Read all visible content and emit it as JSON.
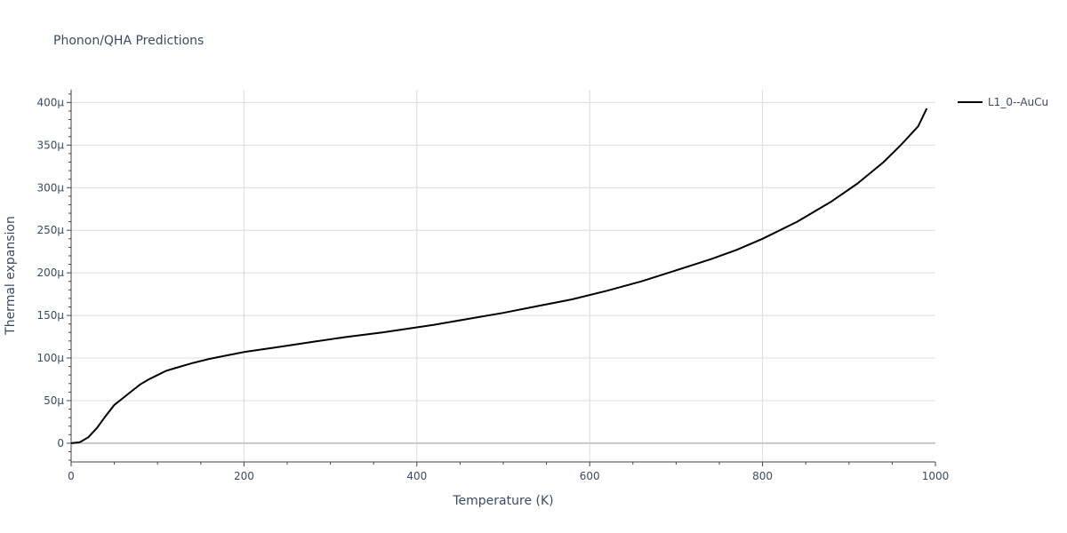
{
  "chart_data": {
    "type": "line",
    "title": "Phonon/QHA Predictions",
    "xlabel": "Temperature (K)",
    "ylabel": "Thermal expansion",
    "xlim": [
      0,
      1000
    ],
    "ylim": [
      -22,
      415
    ],
    "x_ticks": [
      0,
      200,
      400,
      600,
      800,
      1000
    ],
    "y_ticks": [
      0,
      50,
      100,
      150,
      200,
      250,
      300,
      350,
      400
    ],
    "y_tick_labels": [
      "0",
      "50µ",
      "100µ",
      "150µ",
      "200µ",
      "250µ",
      "300µ",
      "350µ",
      "400µ"
    ],
    "grid": true,
    "legend_position": "top-right",
    "series": [
      {
        "name": "L1_0--AuCu",
        "color": "#000000",
        "x": [
          0,
          10,
          20,
          30,
          40,
          50,
          60,
          70,
          80,
          90,
          100,
          110,
          120,
          140,
          160,
          180,
          200,
          240,
          280,
          320,
          360,
          400,
          420,
          460,
          500,
          540,
          580,
          620,
          660,
          700,
          740,
          770,
          800,
          840,
          880,
          910,
          940,
          960,
          980,
          990
        ],
        "y": [
          0,
          1,
          7,
          18,
          32,
          45,
          53,
          61,
          69,
          75,
          80,
          85,
          88,
          94,
          99,
          103,
          107,
          113,
          119,
          125,
          130,
          136,
          139,
          146,
          153,
          161,
          169,
          179,
          190,
          203,
          216,
          227,
          240,
          260,
          284,
          305,
          330,
          350,
          372,
          393
        ]
      }
    ]
  }
}
